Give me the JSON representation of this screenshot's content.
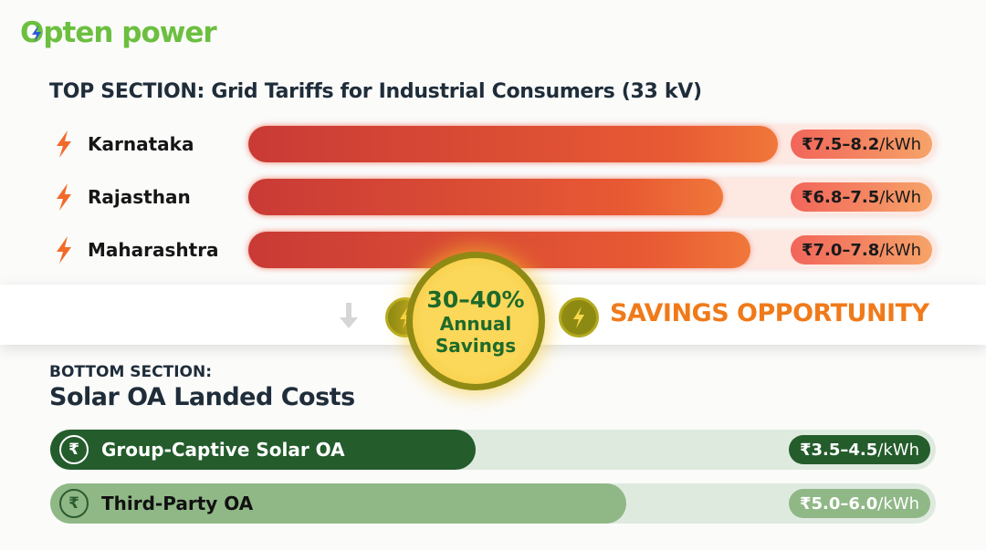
{
  "logo": {
    "text": "Opten power"
  },
  "top": {
    "title": "TOP SECTION: Grid Tariffs for Industrial Consumers (33 kV)",
    "rows": [
      {
        "state": "Karnataka",
        "range": "₹7.5–8.2",
        "unit": "/kWh",
        "fill": 0.77
      },
      {
        "state": "Rajasthan",
        "range": "₹6.8–7.5",
        "unit": "/kWh",
        "fill": 0.69
      },
      {
        "state": "Maharashtra",
        "range": "₹7.0–7.8",
        "unit": "/kWh",
        "fill": 0.73
      }
    ]
  },
  "savings": {
    "percent": "30–40%",
    "line1": "Annual",
    "line2": "Savings",
    "label": "SAVINGS OPPORTUNITY"
  },
  "bottom": {
    "subtitle": "BOTTOM SECTION:",
    "title": "Solar OA Landed Costs",
    "rows": [
      {
        "name": "Group-Captive Solar OA",
        "range": "₹3.5–4.5",
        "unit": "/kWh",
        "fill": 0.48,
        "color": "#245c2c",
        "pill_color": "#245c2c"
      },
      {
        "name": "Third-Party OA",
        "range": "₹5.0–6.0",
        "unit": "/kWh",
        "fill": 0.65,
        "color": "#8fb886",
        "pill_color": "#8fb886"
      }
    ]
  },
  "colors": {
    "accent_orange": "#f07a1a",
    "logo_green": "#6cbf3f",
    "badge_yellow": "#fbd75a"
  },
  "icons": {
    "row": "lightning-icon",
    "bottom": "rupee-icon",
    "band": "arrow-down-icon"
  }
}
